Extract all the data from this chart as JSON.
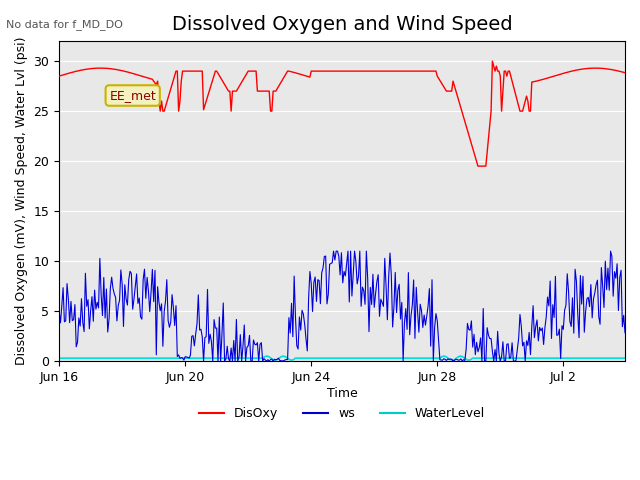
{
  "title": "Dissolved Oxygen and Wind Speed",
  "subtitle": "No data for f_MD_DO",
  "xlabel": "Time",
  "ylabel": "Dissolved Oxygen (mV), Wind Speed, Water Lvl (psi)",
  "ylim": [
    0,
    32
  ],
  "yticks": [
    0,
    5,
    10,
    15,
    20,
    25,
    30
  ],
  "xtick_labels": [
    "Jun 16",
    "Jun 20",
    "Jun 24",
    "Jun 28",
    "Jul 2"
  ],
  "legend_labels": [
    "DisOxy",
    "ws",
    "WaterLevel"
  ],
  "legend_colors": [
    "#ff0000",
    "#0000cc",
    "#00cccc"
  ],
  "disoxy_color": "#ff0000",
  "ws_color": "#0000dd",
  "wl_color": "#00dddd",
  "annotation_text": "EE_met",
  "bg_color": "#e8e8e8",
  "title_fontsize": 14,
  "label_fontsize": 9
}
